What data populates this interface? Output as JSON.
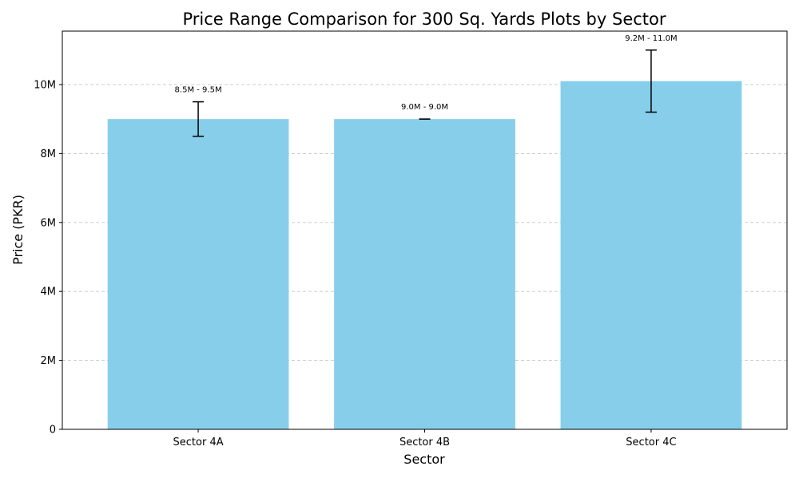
{
  "chart_data": {
    "type": "bar",
    "title": "Price Range Comparison for 300 Sq. Yards Plots by Sector",
    "xlabel": "Sector",
    "ylabel": "Price (PKR)",
    "categories": [
      "Sector 4A",
      "Sector 4B",
      "Sector 4C"
    ],
    "values": [
      9000000,
      9000000,
      10100000
    ],
    "ranges": [
      {
        "low": 8500000,
        "high": 9500000,
        "label": "8.5M - 9.5M"
      },
      {
        "low": 9000000,
        "high": 9000000,
        "label": "9.0M - 9.0M"
      },
      {
        "low": 9200000,
        "high": 11000000,
        "label": "9.2M - 11.0M"
      }
    ],
    "ylim": [
      0,
      11550000
    ],
    "yticks": [
      {
        "value": 0,
        "label": "0"
      },
      {
        "value": 2000000,
        "label": "2M"
      },
      {
        "value": 4000000,
        "label": "4M"
      },
      {
        "value": 6000000,
        "label": "6M"
      },
      {
        "value": 8000000,
        "label": "8M"
      },
      {
        "value": 10000000,
        "label": "10M"
      }
    ],
    "grid": "y-dashed",
    "colors": {
      "bar": "#87CEEB",
      "errorbar": "#000000",
      "grid": "#c8c8c8",
      "axis": "#000000"
    }
  }
}
